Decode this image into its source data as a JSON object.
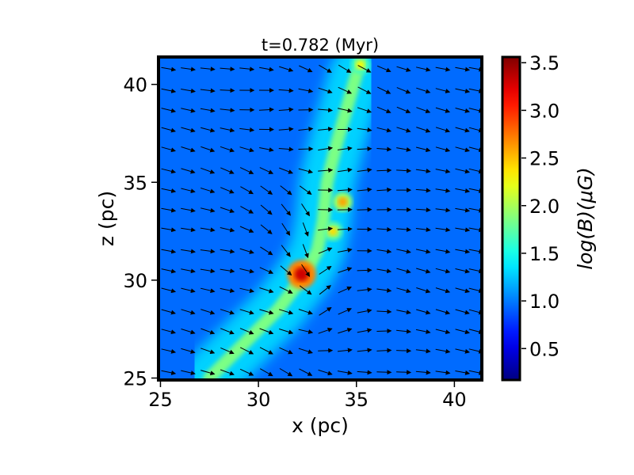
{
  "chart_data": {
    "type": "heatmap",
    "title": "t=0.782 (Myr)",
    "xlabel": "x (pc)",
    "ylabel": "z (pc)",
    "xlim": [
      24.9,
      41.4
    ],
    "ylim": [
      24.9,
      41.4
    ],
    "xticks": [
      25,
      30,
      35,
      40
    ],
    "yticks": [
      25,
      30,
      35,
      40
    ],
    "xtick_labels": [
      "25",
      "30",
      "35",
      "40"
    ],
    "ytick_labels": [
      "25",
      "30",
      "35",
      "40"
    ],
    "colorbar": {
      "label": "log(B)(μG)",
      "range": [
        0.17,
        3.56
      ],
      "ticks": [
        0.5,
        1.0,
        1.5,
        2.0,
        2.5,
        3.0,
        3.5
      ],
      "tick_labels": [
        "0.5",
        "1.0",
        "1.5",
        "2.0",
        "2.5",
        "3.0",
        "3.5"
      ],
      "colormap": "jet"
    },
    "background_level": 0.95,
    "features": [
      {
        "name": "filament",
        "path": [
          [
            27.5,
            25.0
          ],
          [
            29.5,
            27.0
          ],
          [
            31.0,
            28.5
          ],
          [
            32.3,
            30.2
          ],
          [
            33.0,
            31.5
          ],
          [
            33.3,
            33.0
          ],
          [
            33.5,
            35.0
          ],
          [
            34.0,
            37.0
          ],
          [
            35.0,
            40.5
          ]
        ],
        "peak": 1.85
      },
      {
        "name": "core",
        "x": 32.2,
        "z": 30.3,
        "peak": 3.3
      },
      {
        "name": "knot",
        "x": 34.3,
        "z": 34.0,
        "peak": 2.6
      },
      {
        "name": "knot",
        "x": 33.8,
        "z": 32.5,
        "peak": 2.4
      },
      {
        "name": "knot",
        "x": 35.2,
        "z": 41.0,
        "peak": 2.3
      }
    ],
    "vector_field": {
      "description": "magnetic field direction arrows",
      "x": [
        25.4,
        26.4,
        27.4,
        28.4,
        29.4,
        30.4,
        31.4,
        32.4,
        33.4,
        34.4,
        35.4,
        36.4,
        37.4,
        38.4,
        39.4,
        40.4,
        41.1
      ],
      "z": [
        25.3,
        26.4,
        27.4,
        28.4,
        29.5,
        30.5,
        31.5,
        32.6,
        33.6,
        34.6,
        35.6,
        36.7,
        37.7,
        38.7,
        39.7,
        40.8
      ]
    },
    "grid": false
  }
}
